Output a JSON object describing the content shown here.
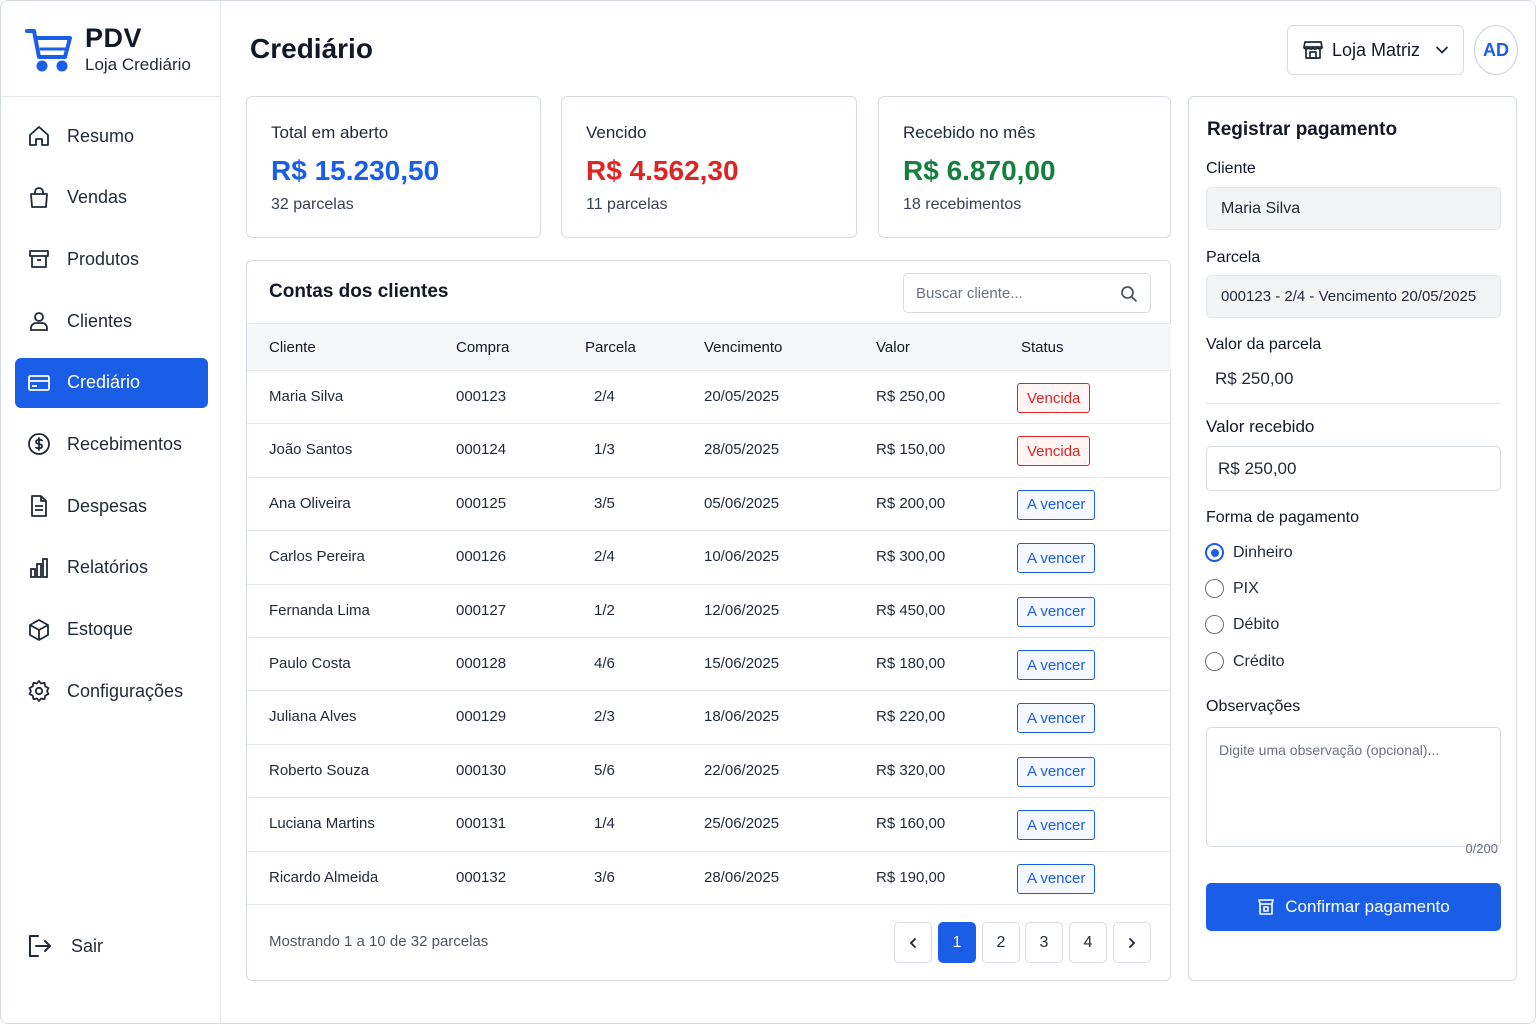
{
  "brand": {
    "title": "PDV",
    "subtitle": "Loja Crediário"
  },
  "sidebar": {
    "items": [
      {
        "label": "Resumo",
        "icon": "home-icon"
      },
      {
        "label": "Vendas",
        "icon": "bag-icon"
      },
      {
        "label": "Produtos",
        "icon": "box-icon"
      },
      {
        "label": "Clientes",
        "icon": "user-icon"
      },
      {
        "label": "Crediário",
        "icon": "credit-card-icon",
        "active": true
      },
      {
        "label": "Recebimentos",
        "icon": "dollar-circle-icon"
      },
      {
        "label": "Despesas",
        "icon": "document-icon"
      },
      {
        "label": "Relatórios",
        "icon": "bar-chart-icon"
      },
      {
        "label": "Estoque",
        "icon": "cube-icon"
      },
      {
        "label": "Configurações",
        "icon": "gear-icon"
      }
    ],
    "logout": "Sair"
  },
  "header": {
    "title": "Crediário",
    "store": "Loja Matriz",
    "avatar": "AD"
  },
  "stats": [
    {
      "label": "Total em aberto",
      "value": "R$ 15.230,50",
      "sub": "32 parcelas",
      "color": "#1a5ee8"
    },
    {
      "label": "Vencido",
      "value": "R$ 4.562,30",
      "sub": "11 parcelas",
      "color": "#dc2626"
    },
    {
      "label": "Recebido no mês",
      "value": "R$ 6.870,00",
      "sub": "18 recebimentos",
      "color": "#15803d"
    }
  ],
  "accounts": {
    "title": "Contas dos clientes",
    "search_placeholder": "Buscar cliente...",
    "columns": [
      "Cliente",
      "Compra",
      "Parcela",
      "Vencimento",
      "Valor",
      "Status"
    ],
    "rows": [
      {
        "client": "Maria Silva",
        "purchase": "000123",
        "installment": "2/4",
        "due": "20/05/2025",
        "amount": "R$ 250,00",
        "status": "Vencida",
        "kind": "overdue"
      },
      {
        "client": "João Santos",
        "purchase": "000124",
        "installment": "1/3",
        "due": "28/05/2025",
        "amount": "R$ 150,00",
        "status": "Vencida",
        "kind": "overdue"
      },
      {
        "client": "Ana Oliveira",
        "purchase": "000125",
        "installment": "3/5",
        "due": "05/06/2025",
        "amount": "R$ 200,00",
        "status": "A vencer",
        "kind": "upcoming"
      },
      {
        "client": "Carlos Pereira",
        "purchase": "000126",
        "installment": "2/4",
        "due": "10/06/2025",
        "amount": "R$ 300,00",
        "status": "A vencer",
        "kind": "upcoming"
      },
      {
        "client": "Fernanda Lima",
        "purchase": "000127",
        "installment": "1/2",
        "due": "12/06/2025",
        "amount": "R$ 450,00",
        "status": "A vencer",
        "kind": "upcoming"
      },
      {
        "client": "Paulo Costa",
        "purchase": "000128",
        "installment": "4/6",
        "due": "15/06/2025",
        "amount": "R$ 180,00",
        "status": "A vencer",
        "kind": "upcoming"
      },
      {
        "client": "Juliana Alves",
        "purchase": "000129",
        "installment": "2/3",
        "due": "18/06/2025",
        "amount": "R$ 220,00",
        "status": "A vencer",
        "kind": "upcoming"
      },
      {
        "client": "Roberto Souza",
        "purchase": "000130",
        "installment": "5/6",
        "due": "22/06/2025",
        "amount": "R$ 320,00",
        "status": "A vencer",
        "kind": "upcoming"
      },
      {
        "client": "Luciana Martins",
        "purchase": "000131",
        "installment": "1/4",
        "due": "25/06/2025",
        "amount": "R$ 160,00",
        "status": "A vencer",
        "kind": "upcoming"
      },
      {
        "client": "Ricardo Almeida",
        "purchase": "000132",
        "installment": "3/6",
        "due": "28/06/2025",
        "amount": "R$ 190,00",
        "status": "A vencer",
        "kind": "upcoming"
      }
    ],
    "footer": "Mostrando 1 a 10 de 32 parcelas",
    "pages": [
      "1",
      "2",
      "3",
      "4"
    ],
    "current_page": "1"
  },
  "payment": {
    "title": "Registrar pagamento",
    "client_label": "Cliente",
    "client_value": "Maria Silva",
    "installment_label": "Parcela",
    "installment_value": "000123 - 2/4 - Vencimento 20/05/2025",
    "amount_label": "Valor da parcela",
    "amount_value": "R$ 250,00",
    "received_label": "Valor recebido",
    "received_value": "R$  250,00",
    "method_label": "Forma de pagamento",
    "methods": [
      "Dinheiro",
      "PIX",
      "Débito",
      "Crédito"
    ],
    "selected_method": "Dinheiro",
    "notes_label": "Observações",
    "notes_placeholder": "Digite uma observação (opcional)...",
    "notes_counter": "0/200",
    "confirm_label": "Confirmar pagamento"
  },
  "colors": {
    "accent": "#1a5ee8",
    "danger": "#dc2626",
    "success": "#15803d"
  }
}
